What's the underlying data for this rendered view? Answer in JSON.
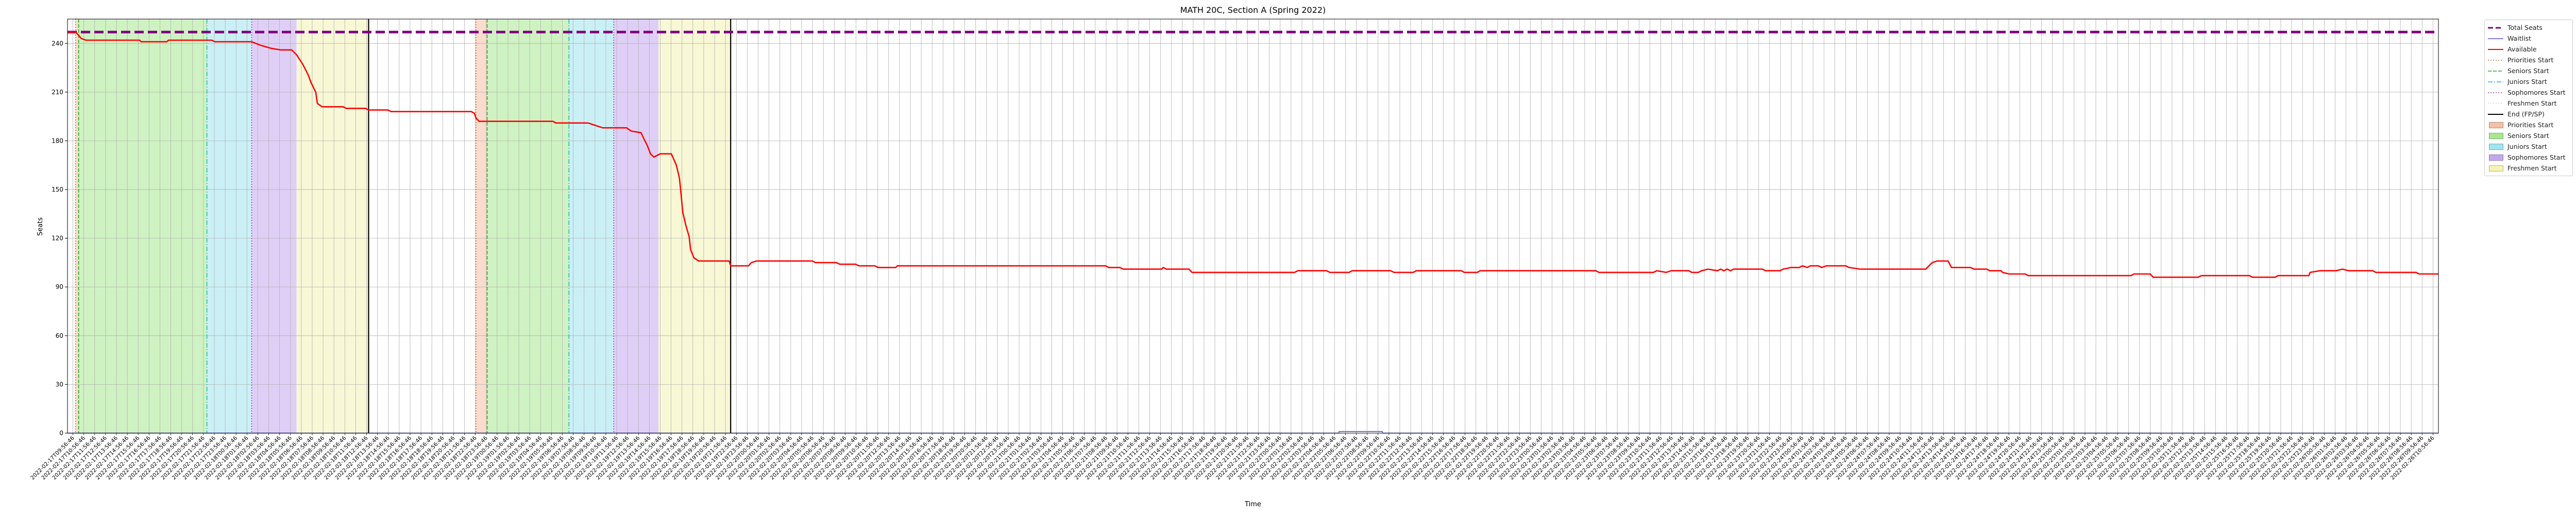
{
  "chart_data": {
    "type": "line",
    "title": "MATH 20C, Section A (Spring 2022)",
    "xlabel": "Time",
    "ylabel": "Seats",
    "ylim": [
      0,
      255
    ],
    "yticks": [
      0,
      30,
      60,
      90,
      120,
      150,
      180,
      210,
      240
    ],
    "grid": true,
    "legend_position": "outside-right",
    "series": [
      {
        "name": "Total Seats",
        "color": "#800080",
        "style": "dashed-thick",
        "values": [
          [
            0,
            247
          ],
          [
            1,
            247
          ]
        ]
      },
      {
        "name": "Waitlist",
        "color": "#5050ff",
        "style": "solid",
        "values": [
          [
            0,
            0
          ],
          [
            0.5363,
            0
          ],
          [
            0.5363,
            1
          ],
          [
            0.5546,
            1
          ],
          [
            0.5546,
            0
          ],
          [
            1,
            0
          ]
        ]
      },
      {
        "name": "Available",
        "color": "#ff0000",
        "style": "solid",
        "values": [
          [
            0,
            247
          ],
          [
            0.0034,
            247
          ],
          [
            0.0047,
            245
          ],
          [
            0.0058,
            243
          ],
          [
            0.0078,
            242
          ],
          [
            0.0304,
            242
          ],
          [
            0.0311,
            241
          ],
          [
            0.0419,
            241
          ],
          [
            0.0426,
            242
          ],
          [
            0.0608,
            242
          ],
          [
            0.0622,
            241
          ],
          [
            0.0777,
            241
          ],
          [
            0.0811,
            239
          ],
          [
            0.0858,
            237
          ],
          [
            0.0898,
            236
          ],
          [
            0.0946,
            236
          ],
          [
            0.0966,
            233
          ],
          [
            0.0993,
            227
          ],
          [
            0.1014,
            221
          ],
          [
            0.1027,
            216
          ],
          [
            0.1047,
            210
          ],
          [
            0.1054,
            203
          ],
          [
            0.1074,
            201
          ],
          [
            0.1162,
            201
          ],
          [
            0.1176,
            200
          ],
          [
            0.1257,
            200
          ],
          [
            0.127,
            199
          ],
          [
            0.1351,
            199
          ],
          [
            0.1365,
            198
          ],
          [
            0.1703,
            198
          ],
          [
            0.1716,
            197
          ],
          [
            0.1723,
            194
          ],
          [
            0.1736,
            192
          ],
          [
            0.2047,
            192
          ],
          [
            0.2061,
            191
          ],
          [
            0.2196,
            191
          ],
          [
            0.2216,
            190
          ],
          [
            0.2257,
            188
          ],
          [
            0.2358,
            188
          ],
          [
            0.2378,
            186
          ],
          [
            0.2419,
            185
          ],
          [
            0.2432,
            181
          ],
          [
            0.2446,
            177
          ],
          [
            0.2459,
            172
          ],
          [
            0.2473,
            170
          ],
          [
            0.25,
            172
          ],
          [
            0.2547,
            172
          ],
          [
            0.2568,
            165
          ],
          [
            0.2581,
            157
          ],
          [
            0.2588,
            147
          ],
          [
            0.2595,
            136
          ],
          [
            0.2608,
            128
          ],
          [
            0.2622,
            121
          ],
          [
            0.2628,
            113
          ],
          [
            0.2642,
            108
          ],
          [
            0.2662,
            106
          ],
          [
            0.2791,
            106
          ],
          [
            0.2797,
            103
          ],
          [
            0.2872,
            103
          ],
          [
            0.2885,
            105
          ],
          [
            0.2905,
            106
          ],
          [
            0.3142,
            106
          ],
          [
            0.3155,
            105
          ],
          [
            0.3243,
            105
          ],
          [
            0.3257,
            104
          ],
          [
            0.3324,
            104
          ],
          [
            0.3338,
            103
          ],
          [
            0.3405,
            103
          ],
          [
            0.3419,
            102
          ],
          [
            0.3493,
            102
          ],
          [
            0.35,
            103
          ],
          [
            0.4378,
            103
          ],
          [
            0.4392,
            102
          ],
          [
            0.4439,
            102
          ],
          [
            0.4453,
            101
          ],
          [
            0.4615,
            101
          ],
          [
            0.4622,
            102
          ],
          [
            0.4635,
            101
          ],
          [
            0.473,
            101
          ],
          [
            0.4743,
            99
          ],
          [
            0.5176,
            99
          ],
          [
            0.5189,
            100
          ],
          [
            0.5311,
            100
          ],
          [
            0.5324,
            99
          ],
          [
            0.5405,
            99
          ],
          [
            0.5419,
            100
          ],
          [
            0.5581,
            100
          ],
          [
            0.5595,
            99
          ],
          [
            0.5676,
            99
          ],
          [
            0.5689,
            100
          ],
          [
            0.5878,
            100
          ],
          [
            0.5892,
            99
          ],
          [
            0.5946,
            99
          ],
          [
            0.5959,
            100
          ],
          [
            0.6446,
            100
          ],
          [
            0.6459,
            99
          ],
          [
            0.6689,
            99
          ],
          [
            0.6703,
            100
          ],
          [
            0.6743,
            99
          ],
          [
            0.6764,
            100
          ],
          [
            0.6838,
            100
          ],
          [
            0.6851,
            99
          ],
          [
            0.6878,
            99
          ],
          [
            0.6892,
            100
          ],
          [
            0.6919,
            101
          ],
          [
            0.6959,
            100
          ],
          [
            0.6973,
            101
          ],
          [
            0.6986,
            100
          ],
          [
            0.7,
            101
          ],
          [
            0.7014,
            100
          ],
          [
            0.7027,
            101
          ],
          [
            0.7149,
            101
          ],
          [
            0.7162,
            100
          ],
          [
            0.7223,
            100
          ],
          [
            0.7236,
            101
          ],
          [
            0.727,
            102
          ],
          [
            0.7304,
            102
          ],
          [
            0.7318,
            103
          ],
          [
            0.7338,
            102
          ],
          [
            0.7351,
            103
          ],
          [
            0.7385,
            103
          ],
          [
            0.7399,
            102
          ],
          [
            0.7419,
            103
          ],
          [
            0.75,
            103
          ],
          [
            0.7514,
            102
          ],
          [
            0.7561,
            101
          ],
          [
            0.7838,
            101
          ],
          [
            0.7851,
            103
          ],
          [
            0.7865,
            105
          ],
          [
            0.7885,
            106
          ],
          [
            0.7932,
            106
          ],
          [
            0.7946,
            102
          ],
          [
            0.8027,
            102
          ],
          [
            0.8041,
            101
          ],
          [
            0.8095,
            101
          ],
          [
            0.8108,
            100
          ],
          [
            0.8155,
            100
          ],
          [
            0.8162,
            99
          ],
          [
            0.8189,
            98
          ],
          [
            0.8257,
            98
          ],
          [
            0.827,
            97
          ],
          [
            0.8703,
            97
          ],
          [
            0.8716,
            98
          ],
          [
            0.8784,
            98
          ],
          [
            0.8797,
            96
          ],
          [
            0.8986,
            96
          ],
          [
            0.9,
            97
          ],
          [
            0.9203,
            97
          ],
          [
            0.9216,
            96
          ],
          [
            0.9311,
            96
          ],
          [
            0.9324,
            97
          ],
          [
            0.9453,
            97
          ],
          [
            0.9459,
            99
          ],
          [
            0.95,
            100
          ],
          [
            0.9568,
            100
          ],
          [
            0.9595,
            101
          ],
          [
            0.9622,
            100
          ],
          [
            0.9723,
            100
          ],
          [
            0.9736,
            99
          ],
          [
            0.9905,
            99
          ],
          [
            0.9919,
            98
          ],
          [
            1,
            98
          ]
        ]
      }
    ],
    "phases": [
      {
        "phase": "Priorities",
        "start": 0.0034,
        "end": 0.0047,
        "color": "#f4c0a6"
      },
      {
        "phase": "Seniors",
        "start": 0.0047,
        "end": 0.0588,
        "color": "#a8e890"
      },
      {
        "phase": "Juniors",
        "start": 0.0588,
        "end": 0.0777,
        "color": "#9fe4ee"
      },
      {
        "phase": "Sophomores",
        "start": 0.0777,
        "end": 0.0966,
        "color": "#c4a8ee"
      },
      {
        "phase": "Freshmen",
        "start": 0.0966,
        "end": 0.127,
        "color": "#f3f3b4"
      },
      {
        "phase": "Priorities",
        "start": 0.1723,
        "end": 0.177,
        "color": "#f4c0a6"
      },
      {
        "phase": "Seniors",
        "start": 0.177,
        "end": 0.2115,
        "color": "#a8e890"
      },
      {
        "phase": "Juniors",
        "start": 0.2115,
        "end": 0.2304,
        "color": "#9fe4ee"
      },
      {
        "phase": "Sophomores",
        "start": 0.2304,
        "end": 0.2493,
        "color": "#c4a8ee"
      },
      {
        "phase": "Freshmen",
        "start": 0.2493,
        "end": 0.2797,
        "color": "#f3f3b4"
      }
    ],
    "vlines": [
      {
        "kind": "priorities",
        "x": 0.0034,
        "color": "#b87333",
        "dash": "2,3"
      },
      {
        "kind": "seniors",
        "x": 0.0047,
        "color": "#22aa22",
        "dash": "7,3"
      },
      {
        "kind": "juniors",
        "x": 0.0588,
        "color": "#22bbbb",
        "dash": "9,3,2,3"
      },
      {
        "kind": "sophomores",
        "x": 0.0777,
        "color": "#8844cc",
        "dash": "2,3"
      },
      {
        "kind": "end",
        "x": 0.127,
        "color": "#000000",
        "dash": ""
      },
      {
        "kind": "priorities",
        "x": 0.1723,
        "color": "#b87333",
        "dash": "2,3"
      },
      {
        "kind": "seniors",
        "x": 0.177,
        "color": "#22aa22",
        "dash": "7,3"
      },
      {
        "kind": "juniors",
        "x": 0.2115,
        "color": "#22bbbb",
        "dash": "9,3,2,3"
      },
      {
        "kind": "sophomores",
        "x": 0.2304,
        "color": "#8844cc",
        "dash": "2,3"
      },
      {
        "kind": "end",
        "x": 0.2797,
        "color": "#000000",
        "dash": ""
      }
    ],
    "xticks_start": "2022-02-17T09:56:46",
    "xticks_count": 218,
    "legend": [
      {
        "label": "Total Seats",
        "kind": "line",
        "color": "#800080",
        "dash": "10,5",
        "width": 3
      },
      {
        "label": "Waitlist",
        "kind": "line",
        "color": "#5050ff",
        "dash": "",
        "width": 1.5
      },
      {
        "label": "Available",
        "kind": "line",
        "color": "#ff0000",
        "dash": "",
        "width": 2
      },
      {
        "label": "Priorities Start",
        "kind": "line",
        "color": "#b87333",
        "dash": "2,3",
        "width": 1.5
      },
      {
        "label": "Seniors Start",
        "kind": "line",
        "color": "#22aa22",
        "dash": "7,3",
        "width": 1.5
      },
      {
        "label": "Juniors Start",
        "kind": "line",
        "color": "#22bbbb",
        "dash": "9,3,2,3",
        "width": 1.5
      },
      {
        "label": "Sophomores Start",
        "kind": "line",
        "color": "#8844cc",
        "dash": "2,3",
        "width": 1.5
      },
      {
        "label": "Freshmen Start",
        "kind": "line",
        "color": "#dddd88",
        "dash": "2,3",
        "width": 1.5
      },
      {
        "label": "End (FP/SP)",
        "kind": "line",
        "color": "#000000",
        "dash": "",
        "width": 2
      },
      {
        "label": "Priorities Start",
        "kind": "patch",
        "color": "#f4c0a6"
      },
      {
        "label": "Seniors Start",
        "kind": "patch",
        "color": "#a8e890"
      },
      {
        "label": "Juniors Start",
        "kind": "patch",
        "color": "#9fe4ee"
      },
      {
        "label": "Sophomores Start",
        "kind": "patch",
        "color": "#c4a8ee"
      },
      {
        "label": "Freshmen Start",
        "kind": "patch",
        "color": "#f3f3b4"
      }
    ]
  }
}
